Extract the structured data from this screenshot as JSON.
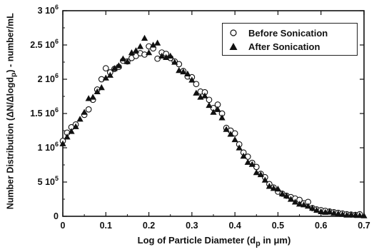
{
  "chart_data": {
    "type": "scatter",
    "title": "",
    "xlabel": "Log of Particle Diameter (d",
    "xlabel_sub": "p",
    "xlabel_tail": " in μm)",
    "ylabel": "Number Distribution (ΔN/Δlogd",
    "ylabel_sub": "p",
    "ylabel_tail": ") - number/mL",
    "xlim": [
      0,
      0.7
    ],
    "ylim": [
      0,
      3000000
    ],
    "x_ticks": [
      "0",
      "0.1",
      "0.2",
      "0.3",
      "0.4",
      "0.5",
      "0.6",
      "0.7"
    ],
    "x_tick_values": [
      0,
      0.1,
      0.2,
      0.3,
      0.4,
      0.5,
      0.6,
      0.7
    ],
    "y_ticks": [
      {
        "value": 0,
        "mant": "0",
        "exp": ""
      },
      {
        "value": 500000,
        "mant": "5 10",
        "exp": "5"
      },
      {
        "value": 1000000,
        "mant": "1 10",
        "exp": "6"
      },
      {
        "value": 1500000,
        "mant": "1.5 10",
        "exp": "6"
      },
      {
        "value": 2000000,
        "mant": "2 10",
        "exp": "6"
      },
      {
        "value": 2500000,
        "mant": "2.5 10",
        "exp": "6"
      },
      {
        "value": 3000000,
        "mant": "3 10",
        "exp": "6"
      }
    ],
    "grid": false,
    "legend_position": "top-right",
    "series": [
      {
        "name": "Before Sonication",
        "marker": "open-circle",
        "points": [
          [
            0.0,
            1100000
          ],
          [
            0.01,
            1220000
          ],
          [
            0.02,
            1300000
          ],
          [
            0.03,
            1340000
          ],
          [
            0.05,
            1480000
          ],
          [
            0.06,
            1560000
          ],
          [
            0.07,
            1700000
          ],
          [
            0.08,
            1850000
          ],
          [
            0.09,
            2000000
          ],
          [
            0.1,
            2160000
          ],
          [
            0.11,
            2100000
          ],
          [
            0.12,
            2150000
          ],
          [
            0.13,
            2180000
          ],
          [
            0.14,
            2270000
          ],
          [
            0.15,
            2260000
          ],
          [
            0.16,
            2310000
          ],
          [
            0.17,
            2340000
          ],
          [
            0.18,
            2380000
          ],
          [
            0.19,
            2360000
          ],
          [
            0.2,
            2480000
          ],
          [
            0.21,
            2450000
          ],
          [
            0.22,
            2300000
          ],
          [
            0.23,
            2390000
          ],
          [
            0.24,
            2370000
          ],
          [
            0.25,
            2310000
          ],
          [
            0.26,
            2260000
          ],
          [
            0.27,
            2220000
          ],
          [
            0.28,
            2120000
          ],
          [
            0.29,
            2040000
          ],
          [
            0.3,
            2030000
          ],
          [
            0.31,
            1930000
          ],
          [
            0.32,
            1820000
          ],
          [
            0.33,
            1810000
          ],
          [
            0.34,
            1700000
          ],
          [
            0.35,
            1580000
          ],
          [
            0.36,
            1630000
          ],
          [
            0.37,
            1500000
          ],
          [
            0.38,
            1290000
          ],
          [
            0.39,
            1250000
          ],
          [
            0.4,
            1210000
          ],
          [
            0.41,
            1050000
          ],
          [
            0.42,
            930000
          ],
          [
            0.43,
            870000
          ],
          [
            0.44,
            780000
          ],
          [
            0.45,
            720000
          ],
          [
            0.46,
            620000
          ],
          [
            0.47,
            570000
          ],
          [
            0.48,
            470000
          ],
          [
            0.49,
            420000
          ],
          [
            0.5,
            360000
          ],
          [
            0.51,
            330000
          ],
          [
            0.52,
            300000
          ],
          [
            0.53,
            280000
          ],
          [
            0.54,
            260000
          ],
          [
            0.55,
            240000
          ],
          [
            0.56,
            190000
          ],
          [
            0.57,
            210000
          ],
          [
            0.58,
            120000
          ],
          [
            0.59,
            100000
          ],
          [
            0.6,
            90000
          ],
          [
            0.61,
            80000
          ],
          [
            0.62,
            70000
          ],
          [
            0.63,
            60000
          ],
          [
            0.64,
            50000
          ],
          [
            0.65,
            40000
          ],
          [
            0.66,
            30000
          ],
          [
            0.67,
            25000
          ],
          [
            0.68,
            20000
          ],
          [
            0.69,
            30000
          ]
        ]
      },
      {
        "name": "After Sonication",
        "marker": "filled-triangle",
        "points": [
          [
            0.0,
            1060000
          ],
          [
            0.01,
            1160000
          ],
          [
            0.02,
            1240000
          ],
          [
            0.03,
            1310000
          ],
          [
            0.04,
            1420000
          ],
          [
            0.05,
            1520000
          ],
          [
            0.06,
            1720000
          ],
          [
            0.07,
            1740000
          ],
          [
            0.08,
            1820000
          ],
          [
            0.09,
            1880000
          ],
          [
            0.1,
            2020000
          ],
          [
            0.11,
            2060000
          ],
          [
            0.12,
            2160000
          ],
          [
            0.13,
            2200000
          ],
          [
            0.14,
            2300000
          ],
          [
            0.15,
            2260000
          ],
          [
            0.16,
            2390000
          ],
          [
            0.17,
            2420000
          ],
          [
            0.18,
            2480000
          ],
          [
            0.19,
            2600000
          ],
          [
            0.2,
            2390000
          ],
          [
            0.21,
            2500000
          ],
          [
            0.22,
            2530000
          ],
          [
            0.23,
            2340000
          ],
          [
            0.24,
            2320000
          ],
          [
            0.25,
            2340000
          ],
          [
            0.26,
            2250000
          ],
          [
            0.27,
            2130000
          ],
          [
            0.28,
            2110000
          ],
          [
            0.29,
            2080000
          ],
          [
            0.3,
            1990000
          ],
          [
            0.31,
            1800000
          ],
          [
            0.32,
            1740000
          ],
          [
            0.33,
            1760000
          ],
          [
            0.34,
            1620000
          ],
          [
            0.35,
            1520000
          ],
          [
            0.36,
            1560000
          ],
          [
            0.37,
            1440000
          ],
          [
            0.38,
            1270000
          ],
          [
            0.39,
            1200000
          ],
          [
            0.4,
            1120000
          ],
          [
            0.41,
            1000000
          ],
          [
            0.42,
            880000
          ],
          [
            0.43,
            790000
          ],
          [
            0.44,
            760000
          ],
          [
            0.45,
            640000
          ],
          [
            0.46,
            610000
          ],
          [
            0.47,
            530000
          ],
          [
            0.48,
            440000
          ],
          [
            0.49,
            410000
          ],
          [
            0.5,
            400000
          ],
          [
            0.51,
            330000
          ],
          [
            0.52,
            300000
          ],
          [
            0.53,
            250000
          ],
          [
            0.54,
            210000
          ],
          [
            0.55,
            180000
          ],
          [
            0.56,
            170000
          ],
          [
            0.57,
            150000
          ],
          [
            0.58,
            120000
          ],
          [
            0.59,
            90000
          ],
          [
            0.6,
            70000
          ],
          [
            0.61,
            60000
          ],
          [
            0.62,
            70000
          ],
          [
            0.63,
            50000
          ],
          [
            0.64,
            40000
          ],
          [
            0.65,
            30000
          ],
          [
            0.66,
            20000
          ],
          [
            0.67,
            25000
          ],
          [
            0.68,
            20000
          ],
          [
            0.69,
            15000
          ],
          [
            0.7,
            10000
          ]
        ]
      }
    ]
  }
}
